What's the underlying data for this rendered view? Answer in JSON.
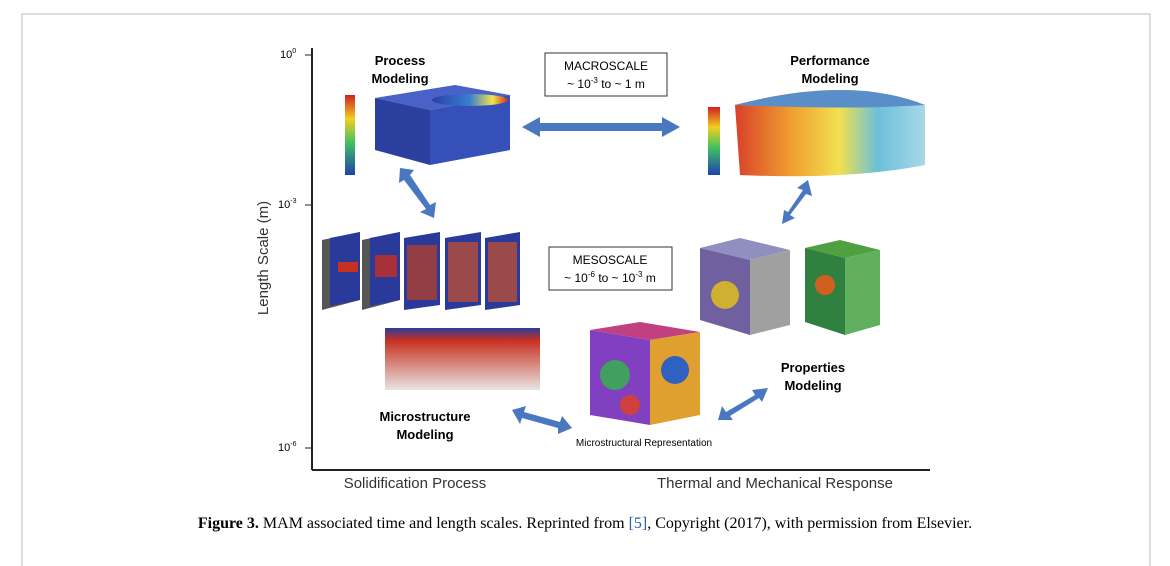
{
  "figure": {
    "y_axis_label": "Length Scale (m)",
    "y_ticks": [
      {
        "base": "10",
        "exponent": "0"
      },
      {
        "base": "10",
        "exponent": "-3"
      },
      {
        "base": "10",
        "exponent": "-6"
      }
    ],
    "x_labels": [
      "Solidification Process",
      "Thermal and Mechanical Response"
    ],
    "process_modeling": [
      "Process",
      "Modeling"
    ],
    "performance_modeling": [
      "Performance",
      "Modeling"
    ],
    "properties_modeling": [
      "Properties",
      "Modeling"
    ],
    "microstructure_modeling": [
      "Microstructure",
      "Modeling"
    ],
    "microstructural_representation": "Microstructural Representation",
    "macroscale": {
      "title": "MACROSCALE",
      "range": [
        "~ 10",
        "-3",
        " to ~ 1 m"
      ]
    },
    "mesoscale": {
      "title": "MESOSCALE",
      "range": [
        "~ 10",
        "-6",
        " to ~ 10",
        "-3",
        " m"
      ]
    }
  },
  "caption": {
    "label": "Figure 3.",
    "text": " MAM associated time and length scales. Reprinted from ",
    "reference": "[5]",
    "rest": ", Copyright (2017), with permission from Elsevier."
  }
}
